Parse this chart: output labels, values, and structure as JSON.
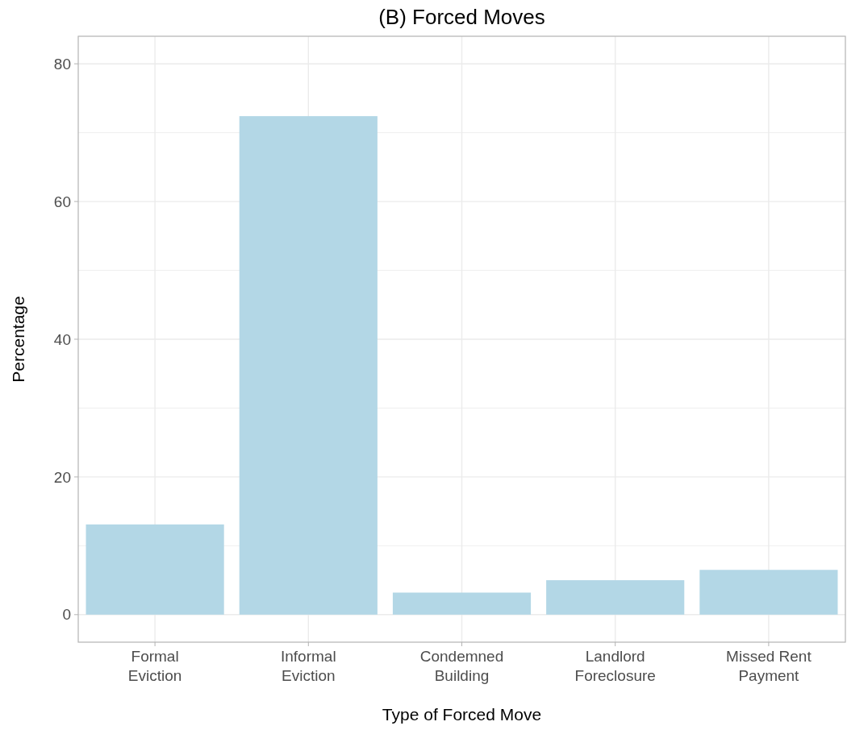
{
  "chart_data": {
    "type": "bar",
    "title": "(B) Forced Moves",
    "xlabel": "Type of Forced Move",
    "ylabel": "Percentage",
    "categories": [
      "Formal\nEviction",
      "Informal\nEviction",
      "Condemned\nBuilding",
      "Landlord\nForeclosure",
      "Missed Rent\nPayment"
    ],
    "values": [
      13.1,
      72.4,
      3.2,
      5.0,
      6.5
    ],
    "color": "#b3d7e6",
    "ylim": [
      -4,
      84
    ],
    "yticks": [
      0,
      {
        "value": 10,
        "label": null
      },
      20,
      {
        "value": 30,
        "label": null
      },
      40,
      {
        "value": 50,
        "label": null
      },
      60,
      {
        "value": 70,
        "label": null
      },
      80
    ],
    "grid": true
  }
}
